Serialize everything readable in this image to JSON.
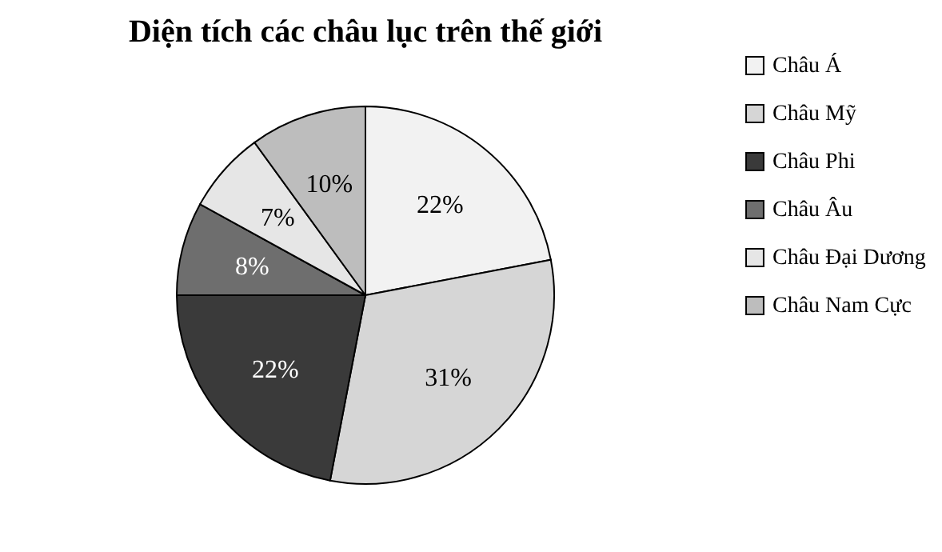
{
  "chart_data": {
    "type": "pie",
    "title": "Diện tích các châu lục trên thế giới",
    "categories": [
      "Châu Á",
      "Châu Mỹ",
      "Châu Phi",
      "Châu Âu",
      "Châu Đại Dương",
      "Châu Nam Cực"
    ],
    "values": [
      22,
      31,
      22,
      8,
      7,
      10
    ],
    "colors": [
      "#f2f2f2",
      "#d6d6d6",
      "#3a3a3a",
      "#6e6e6e",
      "#e6e6e6",
      "#bdbdbd"
    ],
    "value_labels": [
      "22%",
      "31%",
      "22%",
      "8%",
      "7%",
      "10%"
    ],
    "legend": "right"
  }
}
